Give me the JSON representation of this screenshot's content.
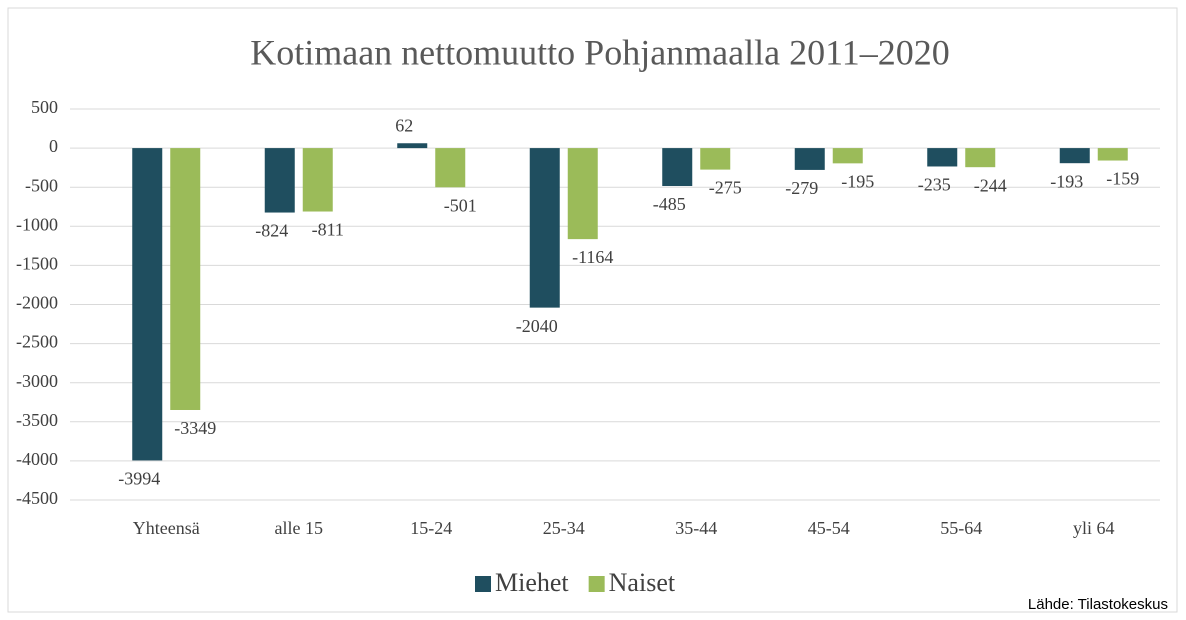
{
  "chart_data": {
    "type": "bar",
    "title": "Kotimaan nettomuutto Pohjanmaalla 2011–2020",
    "categories": [
      "Yhteensä",
      "alle 15",
      "15-24",
      "25-34",
      "35-44",
      "45-54",
      "55-64",
      "yli 64"
    ],
    "series": [
      {
        "name": "Miehet",
        "color": "#1f4e5f",
        "values": [
          -3994,
          -824,
          62,
          -2040,
          -485,
          -279,
          -235,
          -193
        ]
      },
      {
        "name": "Naiset",
        "color": "#9bbb59",
        "values": [
          -3349,
          -811,
          -501,
          -1164,
          -275,
          -195,
          -244,
          -159
        ]
      }
    ],
    "ylim": [
      -4500,
      500
    ],
    "yticks": [
      500,
      0,
      -500,
      -1000,
      -1500,
      -2000,
      -2500,
      -3000,
      -3500,
      -4000,
      -4500
    ],
    "grid": true,
    "legend": "bottom",
    "source": "Lähde: Tilastokeskus"
  }
}
